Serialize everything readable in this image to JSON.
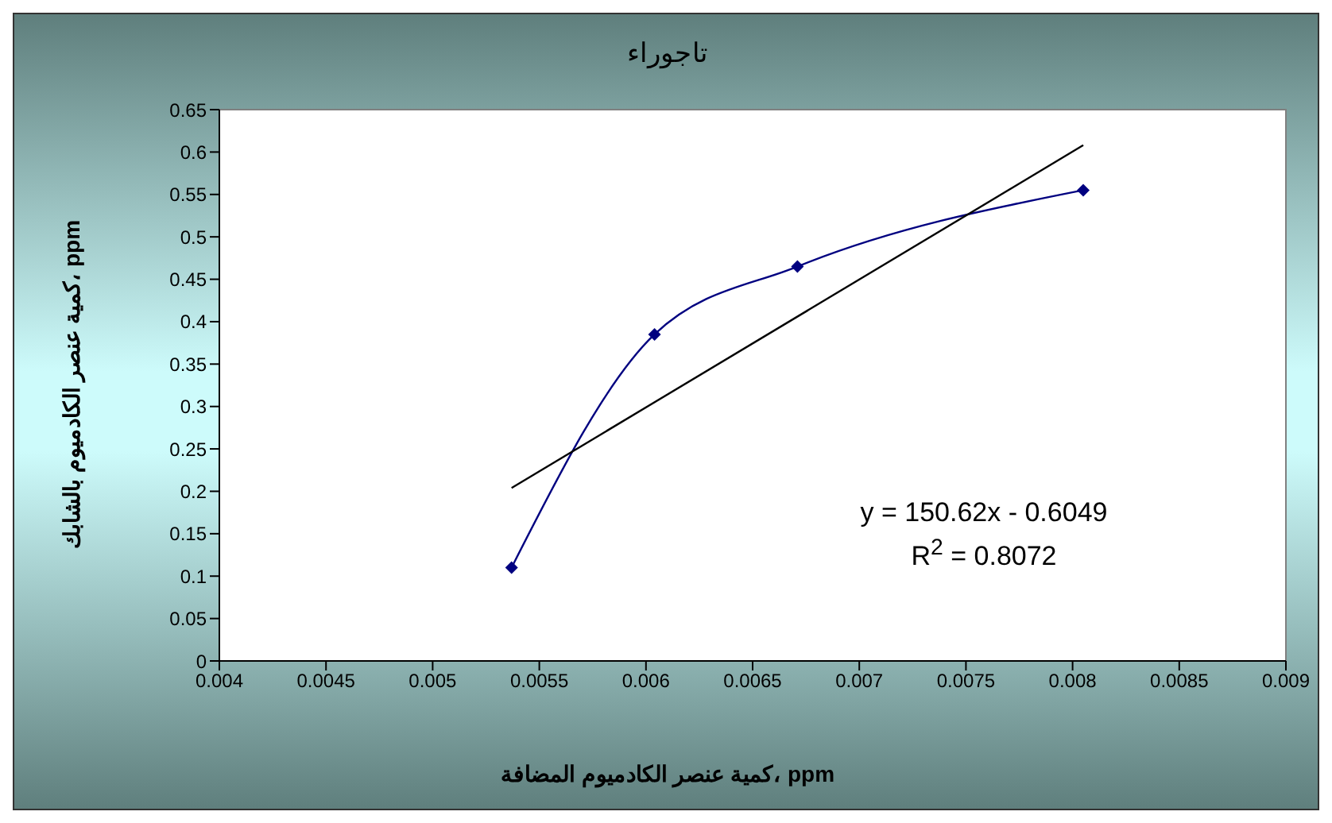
{
  "chart_data": {
    "type": "line",
    "title": "تاجوراء",
    "xlabel": "كمية عنصر الكادميوم المضافة، ppm",
    "ylabel": "كمية عنصر الكادميوم بالشابك، ppm",
    "xlim": [
      0.004,
      0.009
    ],
    "xticks": [
      0.004,
      0.0045,
      0.005,
      0.0055,
      0.006,
      0.0065,
      0.007,
      0.0075,
      0.008,
      0.0085,
      0.009
    ],
    "ylim": [
      0,
      0.65
    ],
    "yticks": [
      0,
      0.05,
      0.1,
      0.15,
      0.2,
      0.25,
      0.3,
      0.35,
      0.4,
      0.45,
      0.5,
      0.55,
      0.6,
      0.65
    ],
    "legend": false,
    "marker": "diamond",
    "line_style": "solid",
    "series": [
      {
        "color": "#000080",
        "x": [
          0.00537,
          0.00604,
          0.00671,
          0.00805
        ],
        "values": [
          0.11,
          0.385,
          0.465,
          0.555
        ]
      },
      {
        "color": "#000000",
        "marker": "none",
        "x": [
          0.00537,
          0.00805
        ],
        "values": [
          0.204,
          0.608
        ]
      }
    ],
    "annotations": [
      "y = 150.62x - 0.6049",
      "R$^{2}$ = 0.8072"
    ]
  }
}
